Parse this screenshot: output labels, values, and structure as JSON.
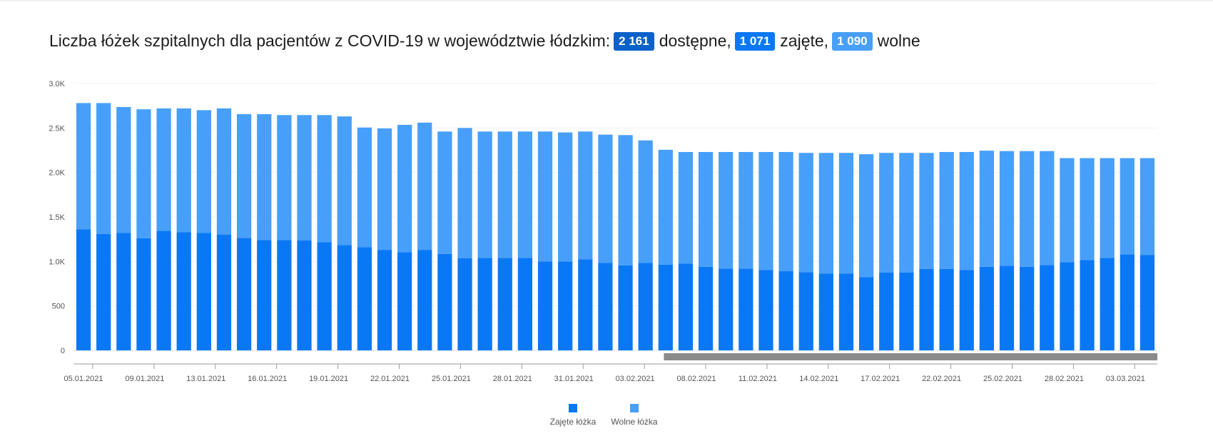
{
  "title": {
    "prefix": "Liczba łóżek szpitalnych dla pacjentów z COVID-19 w województwie łódzkim:",
    "available_value": "2 161",
    "available_label": "dostępne,",
    "occupied_value": "1 071",
    "occupied_label": "zajęte,",
    "free_value": "1 090",
    "free_label": "wolne"
  },
  "colors": {
    "occupied": "#0a78f5",
    "free": "#479ff9",
    "badge_available": "#0a62c8",
    "badge_occupied": "#0a78f5",
    "badge_free": "#479ff9",
    "scrollbar": "#8a8a8a"
  },
  "chart_data": {
    "type": "bar",
    "stacked": true,
    "y_ticks": [
      "0",
      "500",
      "1.0K",
      "1.5K",
      "2.0K",
      "2.5K",
      "3.0K"
    ],
    "ylim": [
      0,
      3000
    ],
    "x_tick_labels": [
      "05.01.2021",
      "09.01.2021",
      "13.01.2021",
      "16.01.2021",
      "19.01.2021",
      "22.01.2021",
      "25.01.2021",
      "28.01.2021",
      "31.01.2021",
      "03.02.2021",
      "08.02.2021",
      "11.02.2021",
      "14.02.2021",
      "17.02.2021",
      "22.02.2021",
      "25.02.2021",
      "28.02.2021",
      "03.03.2021"
    ],
    "series": [
      {
        "name": "Zajęte łóżka",
        "color": "#0a78f5",
        "values": [
          1360,
          1310,
          1320,
          1260,
          1345,
          1330,
          1320,
          1305,
          1265,
          1240,
          1240,
          1235,
          1215,
          1185,
          1160,
          1130,
          1105,
          1130,
          1085,
          1035,
          1040,
          1040,
          1040,
          1000,
          1000,
          1025,
          985,
          955,
          985,
          965,
          975,
          940,
          920,
          920,
          905,
          890,
          880,
          865,
          865,
          825,
          875,
          875,
          915,
          915,
          905,
          940,
          950,
          940,
          960,
          990,
          1015,
          1040,
          1080,
          1071
        ]
      },
      {
        "name": "Wolne łóżka",
        "color": "#479ff9",
        "values": [
          1420,
          1470,
          1415,
          1450,
          1375,
          1390,
          1380,
          1415,
          1390,
          1415,
          1405,
          1410,
          1430,
          1445,
          1345,
          1365,
          1430,
          1430,
          1375,
          1465,
          1420,
          1420,
          1420,
          1460,
          1450,
          1435,
          1440,
          1465,
          1375,
          1290,
          1255,
          1290,
          1310,
          1310,
          1325,
          1340,
          1340,
          1355,
          1355,
          1380,
          1345,
          1345,
          1305,
          1315,
          1325,
          1305,
          1290,
          1300,
          1280,
          1171,
          1146,
          1121,
          1081,
          1090
        ]
      }
    ],
    "legend": [
      "Zajęte łóżka",
      "Wolne łóżka"
    ],
    "legend_position": "bottom-center",
    "scrollbar_range": [
      0.55,
      1.0
    ]
  }
}
